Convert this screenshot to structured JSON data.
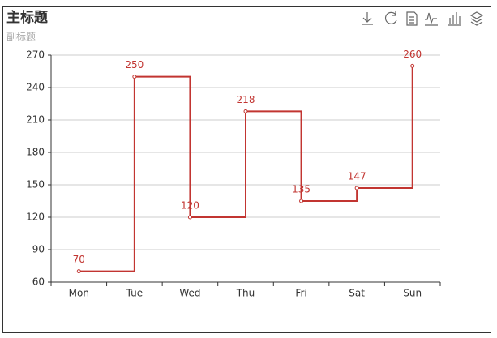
{
  "chart_data": {
    "type": "line",
    "step": "end",
    "title": "主标题",
    "subtitle": "副标题",
    "categories": [
      "Mon",
      "Tue",
      "Wed",
      "Thu",
      "Fri",
      "Sat",
      "Sun"
    ],
    "values": [
      70,
      250,
      120,
      218,
      135,
      147,
      260
    ],
    "color": "#c23531",
    "ylim": [
      60,
      270
    ],
    "yticks": [
      60,
      90,
      120,
      150,
      180,
      210,
      240,
      270
    ],
    "grid": true
  }
}
